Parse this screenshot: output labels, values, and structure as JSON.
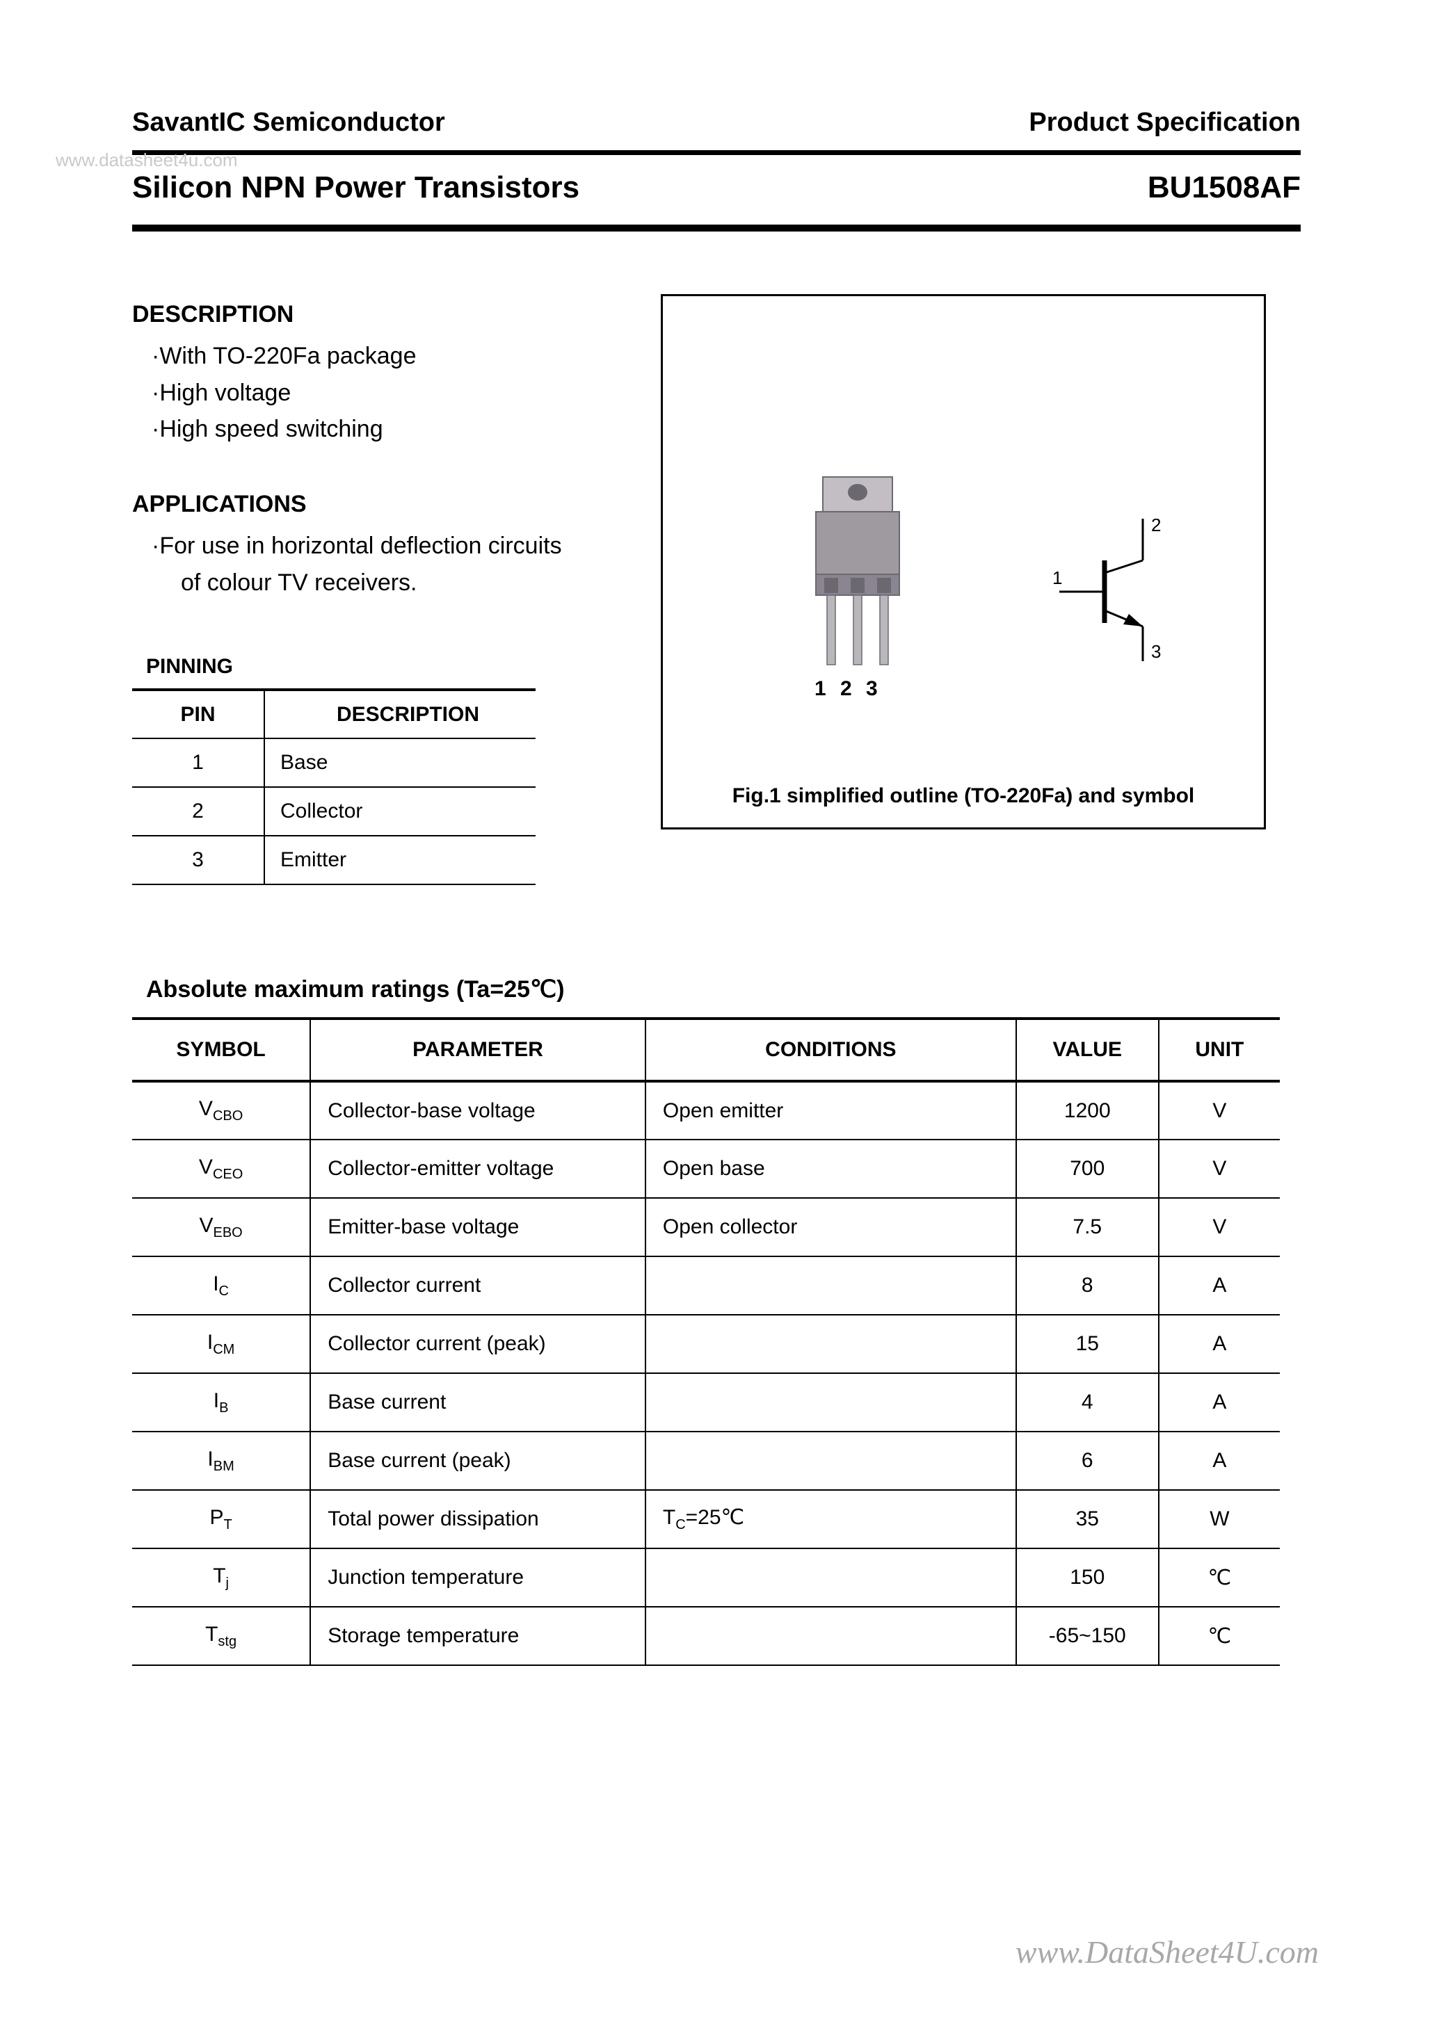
{
  "header": {
    "company": "SavantIC Semiconductor",
    "doc_type": "Product Specification",
    "subtitle": "Silicon NPN Power Transistors",
    "part_number": "BU1508AF"
  },
  "watermark_small": "www.datasheet4u.com",
  "watermark_footer": "www.DataSheet4U.com",
  "description": {
    "heading": "DESCRIPTION",
    "bullets": [
      "·With TO-220Fa package",
      "·High voltage",
      "·High speed switching"
    ]
  },
  "applications": {
    "heading": "APPLICATIONS",
    "line1": "·For use in horizontal deflection circuits",
    "line2": "of colour TV receivers."
  },
  "pinning": {
    "heading": "PINNING",
    "header_pin": "PIN",
    "header_desc": "DESCRIPTION",
    "rows": [
      {
        "pin": "1",
        "desc": "Base"
      },
      {
        "pin": "2",
        "desc": "Collector"
      },
      {
        "pin": "3",
        "desc": "Emitter"
      }
    ]
  },
  "figure": {
    "caption": "Fig.1 simplified outline (TO-220Fa) and symbol",
    "pin_labels": "1 2 3",
    "sym_labels": {
      "base": "1",
      "collector": "2",
      "emitter": "3"
    },
    "package_colors": {
      "body": "#9f99a0",
      "body_dark": "#8a8590",
      "tab": "#c2bec4",
      "hole": "#6c6870",
      "leads": "#b9b7bc"
    }
  },
  "ratings": {
    "heading": "Absolute maximum ratings (Ta=25℃)",
    "columns": {
      "symbol": "SYMBOL",
      "parameter": "PARAMETER",
      "conditions": "CONDITIONS",
      "value": "VALUE",
      "unit": "UNIT"
    },
    "rows": [
      {
        "sym_main": "V",
        "sym_sub": "CBO",
        "param": "Collector-base voltage",
        "cond": "Open emitter",
        "value": "1200",
        "unit": "V"
      },
      {
        "sym_main": "V",
        "sym_sub": "CEO",
        "param": "Collector-emitter voltage",
        "cond": "Open base",
        "value": "700",
        "unit": "V"
      },
      {
        "sym_main": "V",
        "sym_sub": "EBO",
        "param": "Emitter-base voltage",
        "cond": "Open collector",
        "value": "7.5",
        "unit": "V"
      },
      {
        "sym_main": "I",
        "sym_sub": "C",
        "param": "Collector current",
        "cond": "",
        "value": "8",
        "unit": "A"
      },
      {
        "sym_main": "I",
        "sym_sub": "CM",
        "param": "Collector current (peak)",
        "cond": "",
        "value": "15",
        "unit": "A"
      },
      {
        "sym_main": "I",
        "sym_sub": "B",
        "param": "Base current",
        "cond": "",
        "value": "4",
        "unit": "A"
      },
      {
        "sym_main": "I",
        "sym_sub": "BM",
        "param": "Base current (peak)",
        "cond": "",
        "value": "6",
        "unit": "A"
      },
      {
        "sym_main": "P",
        "sym_sub": "T",
        "param": "Total power dissipation",
        "cond": "Tc=25℃",
        "value": "35",
        "unit": "W"
      },
      {
        "sym_main": "T",
        "sym_sub": "j",
        "param": "Junction temperature",
        "cond": "",
        "value": "150",
        "unit": "℃"
      },
      {
        "sym_main": "T",
        "sym_sub": "stg",
        "param": "Storage temperature",
        "cond": "",
        "value": "-65~150",
        "unit": "℃"
      }
    ]
  }
}
